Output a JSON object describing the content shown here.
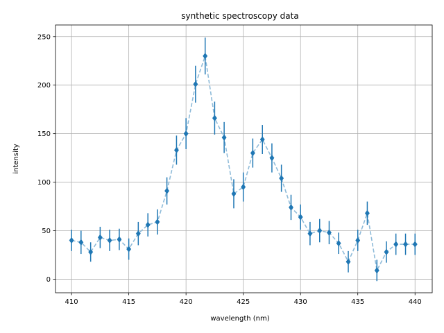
{
  "chart_data": {
    "type": "line",
    "title": "synthetic spectroscopy data",
    "xlabel": "wavelength (nm)",
    "ylabel": "intensity",
    "xlim": [
      408.6,
      441.5
    ],
    "ylim": [
      -14,
      262
    ],
    "xticks": [
      410,
      415,
      420,
      425,
      430,
      435,
      440
    ],
    "yticks": [
      0,
      50,
      100,
      150,
      200,
      250
    ],
    "grid": true,
    "colors": {
      "series": "#1f77b4",
      "line": "#8fbbd9"
    },
    "series": [
      {
        "marker": "diamond",
        "line_style": "dashed",
        "x": [
          410.0,
          410.83,
          411.67,
          412.5,
          413.33,
          414.17,
          415.0,
          415.83,
          416.67,
          417.5,
          418.33,
          419.17,
          420.0,
          420.83,
          421.67,
          422.5,
          423.33,
          424.17,
          425.0,
          425.83,
          426.67,
          427.5,
          428.33,
          429.17,
          430.0,
          430.83,
          431.67,
          432.5,
          433.33,
          434.17,
          435.0,
          435.83,
          436.67,
          437.5,
          438.33,
          439.17,
          440.0
        ],
        "y": [
          40,
          38,
          28,
          43,
          40,
          41,
          31,
          47,
          56,
          59,
          91,
          133,
          150,
          201,
          230,
          166,
          146,
          88,
          95,
          130,
          144,
          125,
          104,
          74,
          64,
          47,
          50,
          48,
          37,
          18,
          40,
          68,
          9,
          28,
          36,
          36,
          36
        ],
        "yerr": [
          11,
          12,
          10,
          11,
          11,
          11,
          11,
          12,
          12,
          13,
          14,
          15,
          16,
          19,
          19,
          17,
          16,
          15,
          15,
          15,
          15,
          15,
          14,
          13,
          13,
          12,
          12,
          12,
          11,
          11,
          11,
          12,
          11,
          11,
          11,
          11,
          11
        ]
      }
    ]
  }
}
